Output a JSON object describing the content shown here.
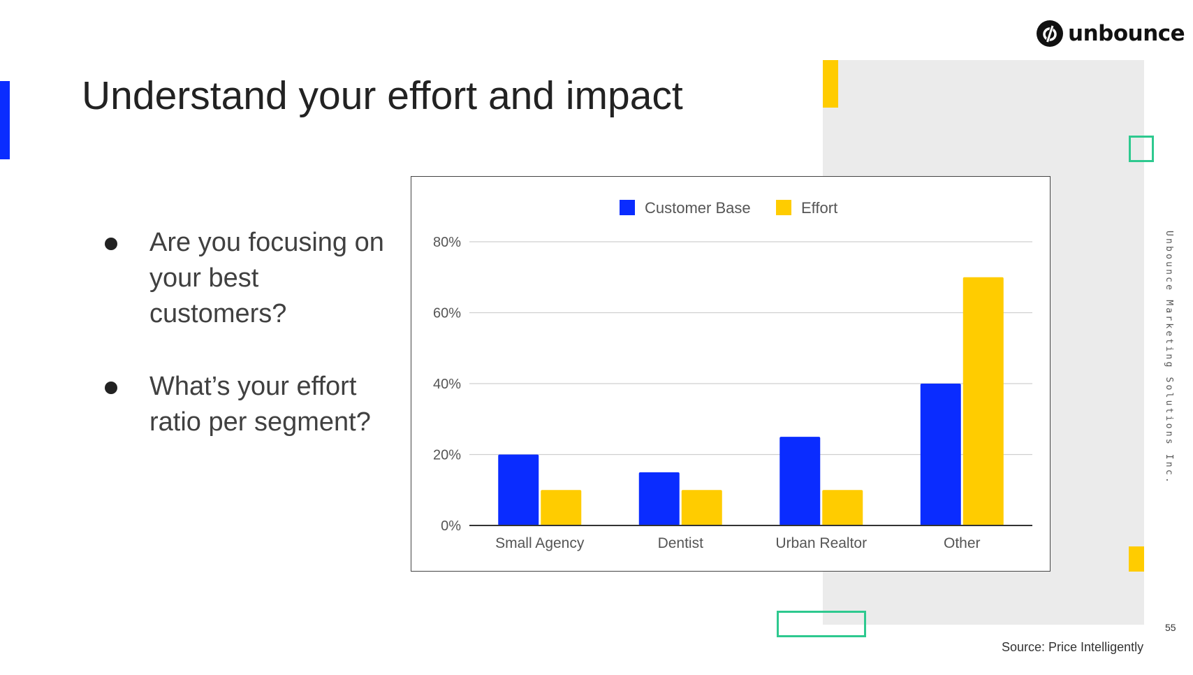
{
  "slide": {
    "title": "Understand your effort and impact",
    "bullets": [
      "Are you focusing on your best customers?",
      "What’s your effort ratio per segment?"
    ],
    "logo_text": "unbounce",
    "side_text": "Unbounce Marketing Solutions Inc.",
    "page_number": "55",
    "source": "Source: Price Intelligently"
  },
  "colors": {
    "blue": "#0a2cff",
    "yellow": "#ffcc00",
    "green": "#2ec98f",
    "panel_gray": "#ebebeb"
  },
  "chart_data": {
    "type": "bar",
    "title": "",
    "xlabel": "",
    "ylabel": "",
    "categories": [
      "Small Agency",
      "Dentist",
      "Urban Realtor",
      "Other"
    ],
    "series": [
      {
        "name": "Customer Base",
        "color": "#0a2cff",
        "values": [
          20,
          15,
          25,
          40
        ]
      },
      {
        "name": "Effort",
        "color": "#ffcc00",
        "values": [
          10,
          10,
          10,
          70
        ]
      }
    ],
    "ylim": [
      0,
      80
    ],
    "yticks": [
      0,
      20,
      40,
      60,
      80
    ],
    "ytick_labels": [
      "0%",
      "20%",
      "40%",
      "60%",
      "80%"
    ],
    "legend_position": "top-center",
    "grid": true
  }
}
